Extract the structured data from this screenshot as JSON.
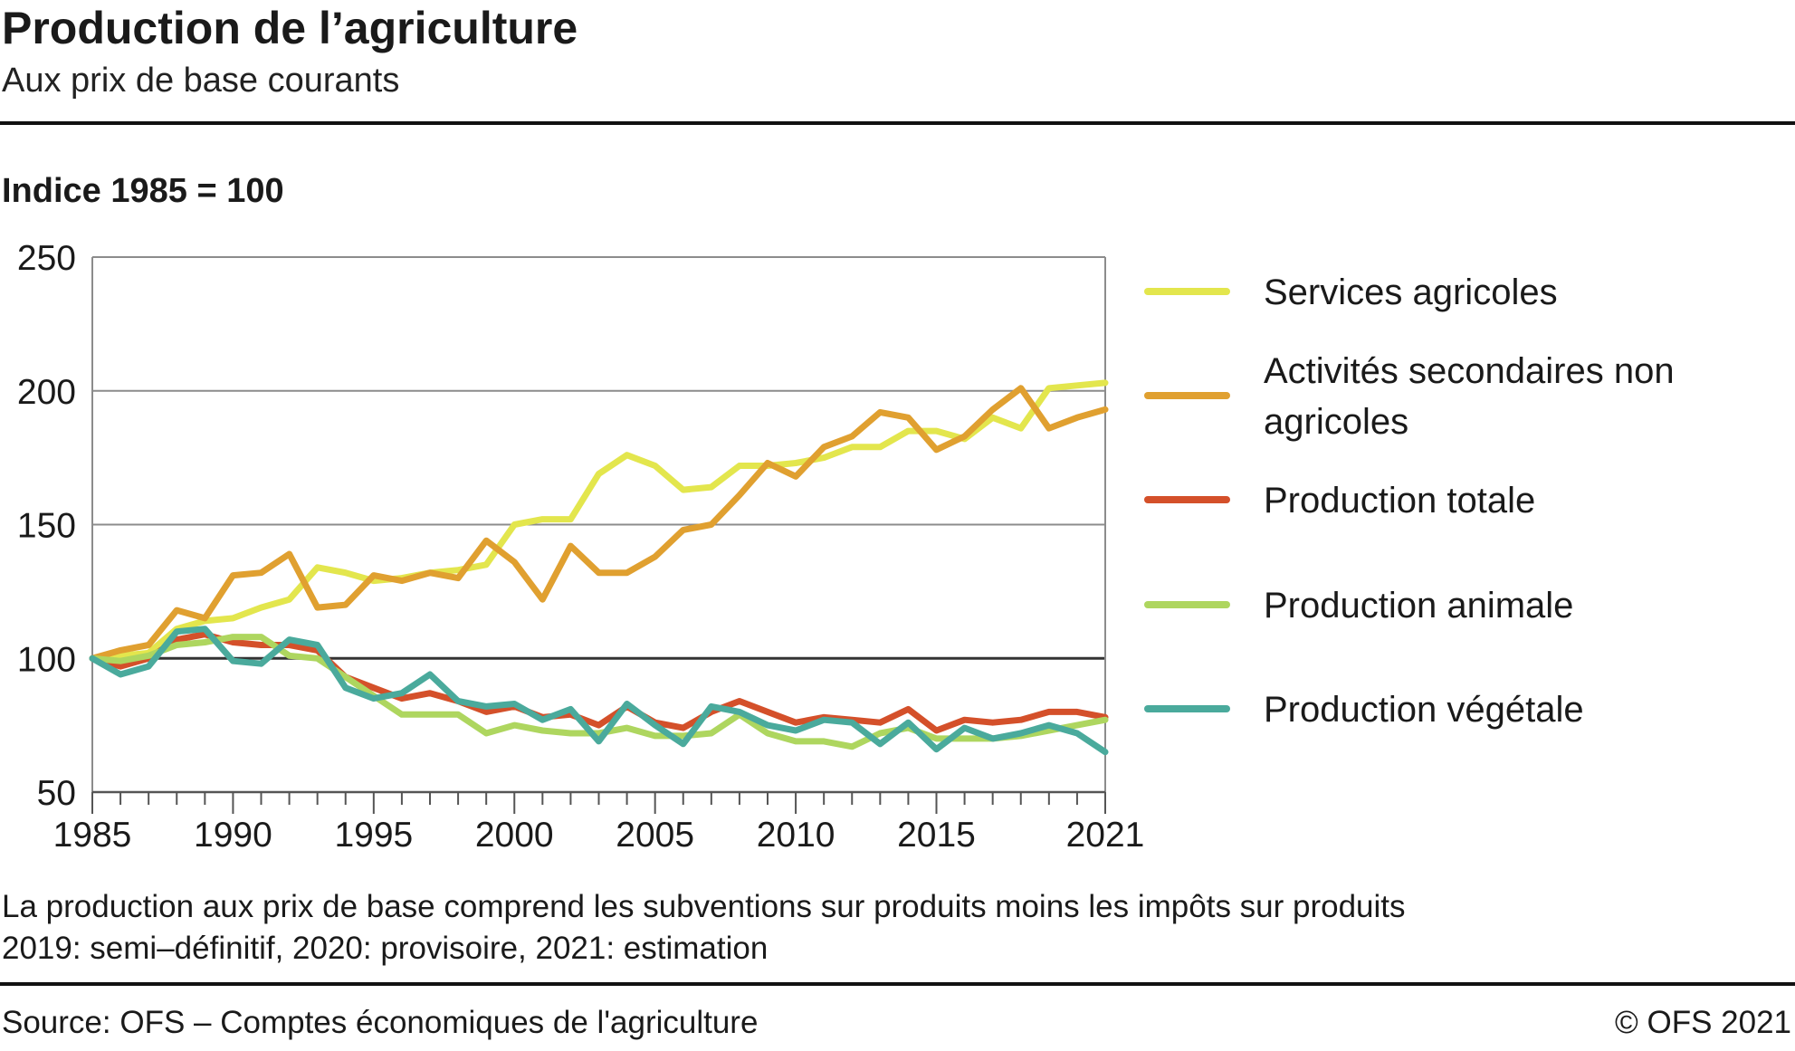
{
  "title": "Production de l’agriculture",
  "subtitle": "Aux prix de base courants",
  "footer": {
    "note1": "La production aux prix de base comprend les subventions sur produits moins les impôts sur produits",
    "note2": "2019: semi–définitif, 2020: provisoire, 2021: estimation",
    "source": "Source: OFS – Comptes économiques de l'agriculture",
    "copyright": "© OFS 2021"
  },
  "chart_data": {
    "type": "line",
    "title": "Production de l’agriculture",
    "subtitle": "Aux prix de base courants",
    "ylabel": "Indice 1985 = 100",
    "xlabel": "",
    "xlim": [
      1985,
      2021
    ],
    "ylim": [
      50,
      250
    ],
    "x_ticks": [
      1985,
      1990,
      1995,
      2000,
      2005,
      2010,
      2015,
      2021
    ],
    "y_ticks": [
      50,
      100,
      150,
      200,
      250
    ],
    "grid": true,
    "legend_position": "right",
    "x": [
      1985,
      1986,
      1987,
      1988,
      1989,
      1990,
      1991,
      1992,
      1993,
      1994,
      1995,
      1996,
      1997,
      1998,
      1999,
      2000,
      2001,
      2002,
      2003,
      2004,
      2005,
      2006,
      2007,
      2008,
      2009,
      2010,
      2011,
      2012,
      2013,
      2014,
      2015,
      2016,
      2017,
      2018,
      2019,
      2020,
      2021
    ],
    "series": [
      {
        "name": "Services agricoles",
        "color": "#e3e64d",
        "values": [
          100,
          101,
          102,
          111,
          114,
          115,
          119,
          122,
          134,
          132,
          129,
          130,
          132,
          133,
          135,
          150,
          152,
          152,
          169,
          176,
          172,
          163,
          164,
          172,
          172,
          173,
          175,
          179,
          179,
          185,
          185,
          182,
          190,
          186,
          201,
          202,
          203
        ]
      },
      {
        "name": "Activités secondaires non agricoles",
        "color": "#e0a030",
        "values": [
          100,
          103,
          105,
          118,
          115,
          131,
          132,
          139,
          119,
          120,
          131,
          129,
          132,
          130,
          144,
          136,
          122,
          142,
          132,
          132,
          138,
          148,
          150,
          161,
          173,
          168,
          179,
          183,
          192,
          190,
          178,
          183,
          193,
          201,
          186,
          190,
          193
        ]
      },
      {
        "name": "Production totale",
        "color": "#d4502a",
        "values": [
          100,
          97,
          100,
          107,
          109,
          106,
          105,
          105,
          103,
          93,
          89,
          85,
          87,
          84,
          80,
          82,
          78,
          79,
          75,
          82,
          76,
          74,
          80,
          84,
          80,
          76,
          78,
          77,
          76,
          81,
          73,
          77,
          76,
          77,
          80,
          80,
          78
        ]
      },
      {
        "name": "Production animale",
        "color": "#aed65f",
        "values": [
          100,
          99,
          101,
          105,
          106,
          108,
          108,
          101,
          100,
          93,
          86,
          79,
          79,
          79,
          72,
          75,
          73,
          72,
          72,
          74,
          71,
          71,
          72,
          79,
          72,
          69,
          69,
          67,
          72,
          74,
          70,
          70,
          70,
          71,
          73,
          75,
          77
        ]
      },
      {
        "name": "Production végétale",
        "color": "#4aaa9c",
        "values": [
          100,
          94,
          97,
          110,
          111,
          99,
          98,
          107,
          105,
          89,
          85,
          87,
          94,
          84,
          82,
          83,
          77,
          81,
          69,
          83,
          75,
          68,
          82,
          80,
          75,
          73,
          77,
          76,
          68,
          76,
          66,
          74,
          70,
          72,
          75,
          72,
          65
        ]
      }
    ]
  }
}
